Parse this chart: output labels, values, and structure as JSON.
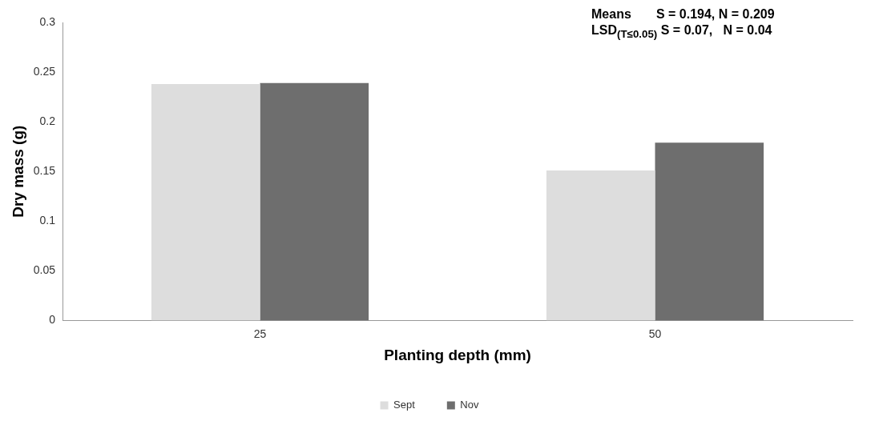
{
  "chart_data": {
    "type": "bar",
    "xlabel": "Planting depth (mm)",
    "ylabel": "Dry mass (g)",
    "categories": [
      "25",
      "50"
    ],
    "series": [
      {
        "name": "Sept",
        "color": "#dddddd",
        "values": [
          0.238,
          0.151
        ]
      },
      {
        "name": "Nov",
        "color": "#6e6e6e",
        "values": [
          0.239,
          0.179
        ]
      }
    ],
    "ylim": [
      0,
      0.3
    ],
    "yticks": [
      0,
      0.05,
      0.1,
      0.15,
      0.2,
      0.25,
      0.3
    ],
    "grid": false,
    "legend": "bottom",
    "annotations": [
      "Means       S = 0.194, N = 0.209",
      "LSD$_{(T≤0.05)}$ S = 0.07,   N = 0.04"
    ]
  }
}
